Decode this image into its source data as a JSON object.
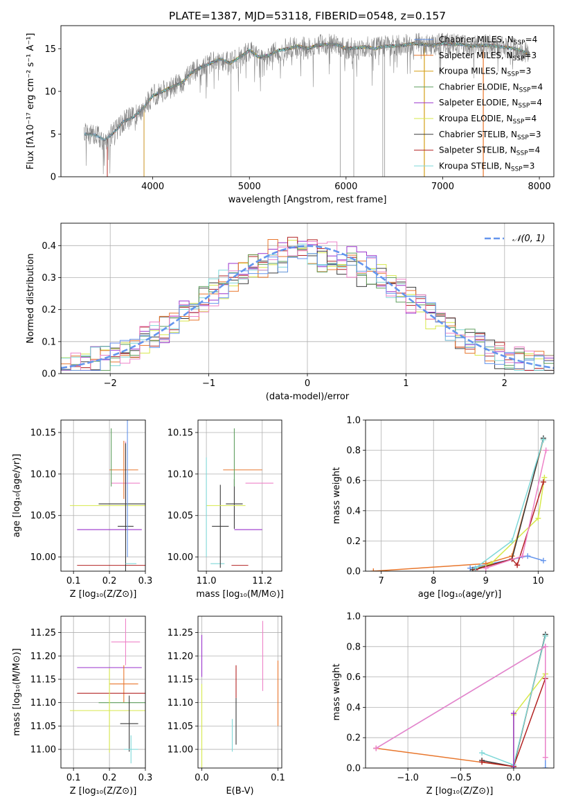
{
  "colors": {
    "Chabrier MILES": "#6495ED",
    "Salpeter MILES": "#E8762C",
    "Kroupa MILES": "#D4A017",
    "Chabrier ELODIE": "#5F9F5F",
    "Salpeter ELODIE": "#9932CC",
    "Kroupa ELODIE": "#D6E84A",
    "Chabrier STELIB": "#3A3A3A",
    "Salpeter STELIB": "#B22222",
    "Kroupa STELIB": "#7FD8D8",
    "extra_pink": "#EE82C8",
    "data": "#808080"
  },
  "chart_data": [
    {
      "id": "spectrum",
      "type": "line",
      "title": "PLATE=1387, MJD=53118, FIBERID=0548, z=0.157",
      "xlabel": "wavelength [Angstrom, rest frame]",
      "ylabel": "Flux [fλ10⁻¹⁷ erg cm⁻² s⁻¹ A⁻¹]",
      "xlim": [
        3050,
        8150
      ],
      "ylim": [
        0,
        17.7
      ],
      "xticks": [
        4000,
        5000,
        6000,
        7000,
        8000
      ],
      "yticks": [
        0,
        5,
        10,
        15
      ],
      "grid": false,
      "legend_position": "upper-right",
      "continuum_points": {
        "x": [
          3290,
          3400,
          3500,
          3600,
          3700,
          3800,
          3900,
          4000,
          4100,
          4200,
          4300,
          4400,
          4500,
          4600,
          4700,
          4800,
          4900,
          5000,
          5100,
          5200,
          5300,
          5400,
          5500,
          5600,
          5700,
          5800,
          5900,
          6000,
          6100,
          6200,
          6300,
          6400,
          6500,
          6600,
          6700,
          6800,
          6900,
          7000,
          7100,
          7200,
          7300,
          7400,
          7500,
          7600,
          7700,
          7800,
          7900
        ],
        "y": [
          5.0,
          4.9,
          4.3,
          5.2,
          6.5,
          7.0,
          8.0,
          9.5,
          10.0,
          10.5,
          11.0,
          12.2,
          12.8,
          13.3,
          13.8,
          13.3,
          14.0,
          14.8,
          14.0,
          14.2,
          14.8,
          15.0,
          15.3,
          15.0,
          15.4,
          15.5,
          15.5,
          15.0,
          15.1,
          15.2,
          15.0,
          15.3,
          15.3,
          15.4,
          15.6,
          15.5,
          15.4,
          15.6,
          15.5,
          15.5,
          15.3,
          15.4,
          15.4,
          15.2,
          15.1,
          14.8,
          14.4
        ]
      },
      "series": [
        {
          "name": "Chabrier MILES",
          "nssp": "4"
        },
        {
          "name": "Salpeter MILES",
          "nssp": "3"
        },
        {
          "name": "Kroupa MILES",
          "nssp": "3"
        },
        {
          "name": "Chabrier ELODIE",
          "nssp": "4"
        },
        {
          "name": "Salpeter ELODIE",
          "nssp": "4"
        },
        {
          "name": "Kroupa ELODIE",
          "nssp": "4"
        },
        {
          "name": "Chabrier STELIB",
          "nssp": "3"
        },
        {
          "name": "Salpeter STELIB",
          "nssp": "4"
        },
        {
          "name": "Kroupa STELIB",
          "nssp": "3"
        }
      ]
    },
    {
      "id": "residuals",
      "type": "line",
      "xlabel": "(data-model)/error",
      "ylabel": "Normed distribution",
      "xlim": [
        -2.5,
        2.5
      ],
      "ylim": [
        0,
        0.47
      ],
      "xticks": [
        -2,
        -1,
        0,
        1,
        2
      ],
      "yticks": [
        0.0,
        0.1,
        0.2,
        0.3,
        0.4
      ],
      "grid": true,
      "legend_position": "upper-right",
      "reference_label": "𝒩(0, 1)",
      "bin_width": 0.1
    },
    {
      "id": "age-vs-Z",
      "type": "scatter",
      "xlabel": "Z [log₁₀(Z/Z⊙)]",
      "ylabel": "age  [log₁₀(age/yr)]",
      "xlim": [
        0.065,
        0.3
      ],
      "ylim": [
        9.983,
        10.165
      ],
      "xticks": [
        0.1,
        0.2,
        0.3
      ],
      "yticks": [
        10.0,
        10.05,
        10.1,
        10.15
      ],
      "grid": true,
      "errorbars": [
        {
          "x": 0.21,
          "y": 9.99,
          "xerr": 0.1,
          "yerr": 0.0,
          "color": "Salpeter STELIB"
        },
        {
          "x": 0.2,
          "y": 10.033,
          "xerr": 0.09,
          "yerr": 0.0,
          "color": "Salpeter ELODIE"
        },
        {
          "x": 0.24,
          "y": 10.064,
          "xerr": 0.07,
          "yerr": 0.0,
          "color": "Chabrier STELIB"
        },
        {
          "x": 0.2,
          "y": 10.062,
          "xerr": 0.11,
          "yerr": 0.0,
          "color": "Kroupa ELODIE"
        },
        {
          "x": 0.245,
          "y": 10.089,
          "xerr": 0.04,
          "yerr": 0.05,
          "color": "extra_pink"
        },
        {
          "x": 0.24,
          "y": 10.105,
          "xerr": 0.04,
          "yerr": 0.035,
          "color": "Salpeter MILES"
        },
        {
          "x": 0.245,
          "y": 10.037,
          "xerr": 0.022,
          "yerr": 0.1,
          "color": "Chabrier STELIB"
        },
        {
          "x": 0.26,
          "y": 9.992,
          "xerr": 0.015,
          "yerr": 0.0,
          "color": "Kroupa STELIB"
        },
        {
          "x": 0.205,
          "y": 10.12,
          "xerr": 0.0,
          "yerr": 0.035,
          "color": "Chabrier ELODIE"
        },
        {
          "x": 0.25,
          "y": 10.1,
          "xerr": 0.0,
          "yerr": 0.1,
          "color": "Chabrier MILES"
        }
      ]
    },
    {
      "id": "age-vs-mass",
      "type": "scatter",
      "xlabel": "mass [log₁₀(M/M⊙)]",
      "xlim": [
        10.97,
        11.27
      ],
      "ylim": [
        9.983,
        10.165
      ],
      "xticks": [
        11.0,
        11.2
      ],
      "yticks": [
        10.0,
        10.05,
        10.1,
        10.15
      ],
      "grid": true,
      "errorbars": [
        {
          "x": 11.12,
          "y": 9.99,
          "xerr": 0.03,
          "yerr": 0.0,
          "color": "Salpeter STELIB"
        },
        {
          "x": 11.04,
          "y": 9.992,
          "xerr": 0.025,
          "yerr": 0.0,
          "color": "Kroupa STELIB"
        },
        {
          "x": 11.05,
          "y": 10.037,
          "xerr": 0.03,
          "yerr": 0.05,
          "color": "Chabrier STELIB"
        },
        {
          "x": 11.1,
          "y": 10.064,
          "xerr": 0.03,
          "yerr": 0.03,
          "color": "Chabrier STELIB"
        },
        {
          "x": 11.07,
          "y": 10.062,
          "xerr": 0.07,
          "yerr": 0.0,
          "color": "Kroupa ELODIE"
        },
        {
          "x": 11.19,
          "y": 10.089,
          "xerr": 0.05,
          "yerr": 0.0,
          "color": "extra_pink"
        },
        {
          "x": 11.13,
          "y": 10.105,
          "xerr": 0.07,
          "yerr": 0.0,
          "color": "Salpeter MILES"
        },
        {
          "x": 11.15,
          "y": 10.033,
          "xerr": 0.05,
          "yerr": 0.0,
          "color": "Salpeter ELODIE"
        },
        {
          "x": 11.1,
          "y": 10.12,
          "xerr": 0.0,
          "yerr": 0.035,
          "color": "Chabrier ELODIE"
        },
        {
          "x": 11.0,
          "y": 10.06,
          "xerr": 0.0,
          "yerr": 0.06,
          "color": "Kroupa STELIB"
        }
      ]
    },
    {
      "id": "massweight-vs-age",
      "type": "line",
      "xlabel": "age  [log₁₀(age/yr)]",
      "ylabel": "mass weight",
      "xlim": [
        6.7,
        10.3
      ],
      "ylim": [
        0,
        1.0
      ],
      "xticks": [
        7,
        8,
        9,
        10
      ],
      "yticks": [
        0.0,
        0.2,
        0.4,
        0.6,
        0.8,
        1.0
      ],
      "grid": true,
      "series": [
        {
          "color": "Chabrier MILES",
          "x": [
            8.7,
            9.8,
            10.1
          ],
          "y": [
            0.02,
            0.1,
            0.07
          ]
        },
        {
          "color": "Salpeter MILES",
          "x": [
            6.85,
            9.0,
            9.5,
            10.1
          ],
          "y": [
            0.0,
            0.05,
            0.1,
            0.87
          ]
        },
        {
          "color": "Kroupa ELODIE",
          "x": [
            8.75,
            9.1,
            10.0,
            10.12
          ],
          "y": [
            0.01,
            0.05,
            0.35,
            0.62
          ]
        },
        {
          "color": "Chabrier STELIB",
          "x": [
            8.75,
            9.5,
            10.1
          ],
          "y": [
            0.01,
            0.08,
            0.88
          ]
        },
        {
          "color": "Salpeter STELIB",
          "x": [
            8.8,
            9.5,
            9.6,
            10.1
          ],
          "y": [
            0.01,
            0.08,
            0.04,
            0.59
          ]
        },
        {
          "color": "Kroupa STELIB",
          "x": [
            8.8,
            9.5,
            10.1
          ],
          "y": [
            0.02,
            0.2,
            0.87
          ]
        },
        {
          "color": "extra_pink",
          "x": [
            9.0,
            9.7,
            10.15
          ],
          "y": [
            0.02,
            0.1,
            0.8
          ]
        }
      ]
    },
    {
      "id": "mass-vs-Z",
      "type": "scatter",
      "xlabel": "Z [log₁₀(Z/Z⊙)]",
      "ylabel": "mass [log₁₀(M/M⊙)]",
      "xlim": [
        0.065,
        0.3
      ],
      "ylim": [
        10.96,
        11.285
      ],
      "xticks": [
        0.1,
        0.2,
        0.3
      ],
      "yticks": [
        11.0,
        11.05,
        11.1,
        11.15,
        11.2,
        11.25
      ],
      "grid": true,
      "errorbars": [
        {
          "x": 0.245,
          "y": 11.23,
          "xerr": 0.04,
          "yerr": 0.05,
          "color": "extra_pink"
        },
        {
          "x": 0.2,
          "y": 11.175,
          "xerr": 0.09,
          "yerr": 0.0,
          "color": "Salpeter ELODIE"
        },
        {
          "x": 0.24,
          "y": 11.14,
          "xerr": 0.04,
          "yerr": 0.04,
          "color": "Salpeter MILES"
        },
        {
          "x": 0.21,
          "y": 11.12,
          "xerr": 0.1,
          "yerr": 0.0,
          "color": "Salpeter STELIB"
        },
        {
          "x": 0.24,
          "y": 11.1,
          "xerr": 0.07,
          "yerr": 0.0,
          "color": "Chabrier ELODIE"
        },
        {
          "x": 0.2,
          "y": 11.083,
          "xerr": 0.11,
          "yerr": 0.09,
          "color": "Kroupa ELODIE"
        },
        {
          "x": 0.255,
          "y": 11.055,
          "xerr": 0.025,
          "yerr": 0.06,
          "color": "Chabrier STELIB"
        },
        {
          "x": 0.26,
          "y": 11.0,
          "xerr": 0.02,
          "yerr": 0.03,
          "color": "Kroupa STELIB"
        }
      ]
    },
    {
      "id": "mass-vs-EBV",
      "type": "scatter",
      "xlabel": "E(B-V)",
      "xlim": [
        -0.005,
        0.105
      ],
      "ylim": [
        10.96,
        11.285
      ],
      "xticks": [
        0.0,
        0.1
      ],
      "yticks": [
        11.0,
        11.05,
        11.1,
        11.15,
        11.2,
        11.25
      ],
      "grid": true,
      "errorbars": [
        {
          "x": 0.0,
          "y": 11.2,
          "xerr": 0.0,
          "yerr": 0.045,
          "color": "Salpeter ELODIE"
        },
        {
          "x": 0.0,
          "y": 11.05,
          "xerr": 0.0,
          "yerr": 0.09,
          "color": "Kroupa ELODIE"
        },
        {
          "x": 0.04,
          "y": 11.03,
          "xerr": 0.0,
          "yerr": 0.035,
          "color": "Kroupa STELIB"
        },
        {
          "x": 0.045,
          "y": 11.06,
          "xerr": 0.0,
          "yerr": 0.05,
          "color": "Chabrier STELIB"
        },
        {
          "x": 0.045,
          "y": 11.145,
          "xerr": 0.0,
          "yerr": 0.035,
          "color": "Salpeter STELIB"
        },
        {
          "x": 0.08,
          "y": 11.2,
          "xerr": 0.0,
          "yerr": 0.075,
          "color": "extra_pink"
        },
        {
          "x": 0.1,
          "y": 11.12,
          "xerr": 0.0,
          "yerr": 0.07,
          "color": "Salpeter MILES"
        }
      ]
    },
    {
      "id": "massweight-vs-Z",
      "type": "line",
      "xlabel": "Z [log₁₀(Z/Z⊙)]",
      "ylabel": "mass weight",
      "xlim": [
        -1.4,
        0.38
      ],
      "ylim": [
        0,
        1.0
      ],
      "xticks": [
        -1.0,
        -0.5,
        0.0
      ],
      "yticks": [
        0.0,
        0.2,
        0.4,
        0.6,
        0.8,
        1.0
      ],
      "grid": true,
      "series": [
        {
          "color": "Chabrier MILES",
          "x": [
            -1.3,
            0.3,
            0.3
          ],
          "y": [
            0.13,
            0.8,
            0.0
          ]
        },
        {
          "color": "Salpeter MILES",
          "x": [
            -1.3,
            0.0,
            0.3
          ],
          "y": [
            0.13,
            0.01,
            0.87
          ]
        },
        {
          "color": "Kroupa ELODIE",
          "x": [
            0.0,
            0.0,
            0.3,
            0.3
          ],
          "y": [
            0.01,
            0.35,
            0.62,
            0.62
          ]
        },
        {
          "color": "Chabrier STELIB",
          "x": [
            -0.3,
            0.0,
            0.3
          ],
          "y": [
            0.05,
            0.01,
            0.88
          ]
        },
        {
          "color": "Salpeter STELIB",
          "x": [
            -0.3,
            0.0,
            0.3
          ],
          "y": [
            0.04,
            0.01,
            0.59
          ]
        },
        {
          "color": "Kroupa STELIB",
          "x": [
            -0.3,
            0.0,
            0.3
          ],
          "y": [
            0.1,
            0.02,
            0.87
          ]
        },
        {
          "color": "Salpeter ELODIE",
          "x": [
            0.0,
            0.0
          ],
          "y": [
            0.0,
            0.36
          ]
        },
        {
          "color": "extra_pink",
          "x": [
            -1.3,
            0.3,
            0.3
          ],
          "y": [
            0.13,
            0.8,
            0.07
          ]
        }
      ]
    }
  ]
}
